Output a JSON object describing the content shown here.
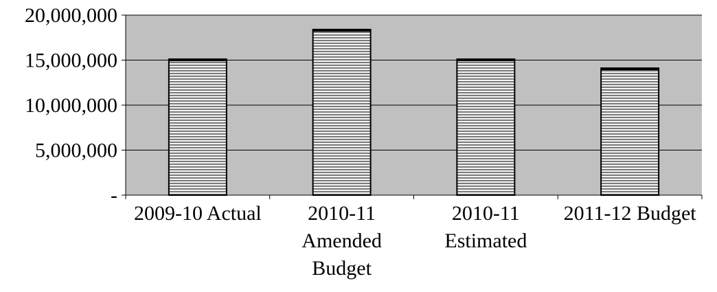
{
  "chart_data": {
    "type": "bar",
    "title": "",
    "xlabel": "",
    "ylabel": "",
    "categories": [
      [
        "2009-10 Actual"
      ],
      [
        "2010-11",
        "Amended",
        "Budget"
      ],
      [
        "2010-11",
        "Estimated"
      ],
      [
        "2011-12 Budget"
      ]
    ],
    "values": [
      15100000,
      18400000,
      15100000,
      14100000
    ],
    "ylim": [
      0,
      20000000
    ],
    "yticks": [
      {
        "value": 0,
        "label": "-"
      },
      {
        "value": 5000000,
        "label": "5,000,000"
      },
      {
        "value": 10000000,
        "label": "10,000,000"
      },
      {
        "value": 15000000,
        "label": "15,000,000"
      },
      {
        "value": 20000000,
        "label": "20,000,000"
      }
    ],
    "grid": true,
    "legend": "none",
    "colors": {
      "plot_background": "#c0c0c0",
      "bar_stripe_light": "#f4f4f4",
      "bar_stripe_dark": "#7a7a7a",
      "bar_edge": "#000000",
      "gridline": "#000000"
    }
  }
}
